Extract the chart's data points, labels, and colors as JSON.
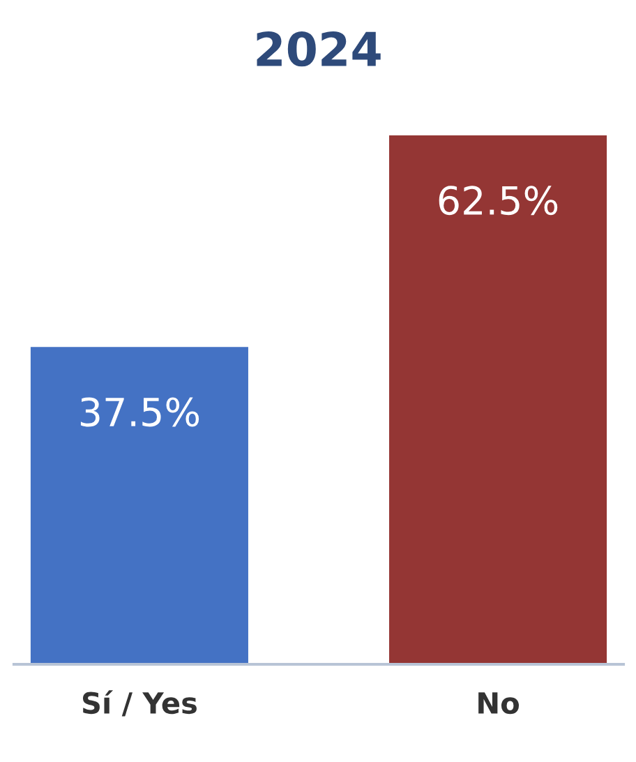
{
  "chart_data": {
    "type": "bar",
    "title": "2024",
    "categories": [
      "Sí / Yes",
      "No"
    ],
    "values": [
      37.5,
      62.5
    ],
    "colors": [
      "#4472c4",
      "#943634"
    ],
    "value_labels": [
      "37.5%",
      "62.5%"
    ],
    "grid": false,
    "legend": false
  }
}
